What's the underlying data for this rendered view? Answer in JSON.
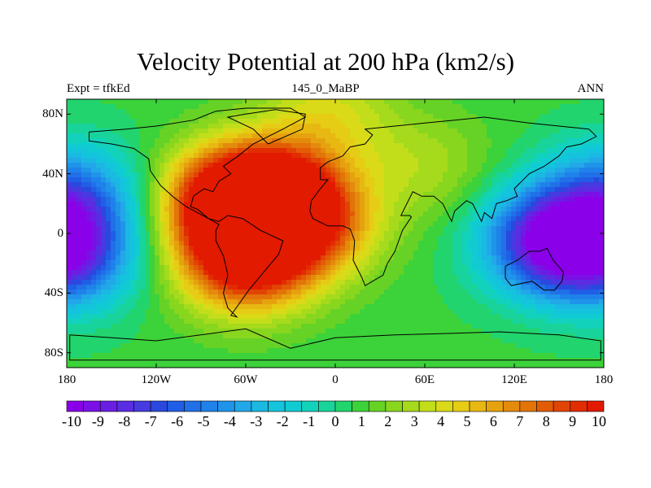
{
  "title": "Velocity Potential at 200 hPa (km2/s)",
  "subtitle_left": "Expt = tfkEd",
  "subtitle_center": "145_0_MaBP",
  "subtitle_right": "ANN",
  "map": {
    "projection": "cylindrical equidistant",
    "lon_range": [
      -180,
      180
    ],
    "lat_range": [
      -90,
      90
    ],
    "x_ticks": [
      {
        "lon": -180,
        "label": "180"
      },
      {
        "lon": -120,
        "label": "120W"
      },
      {
        "lon": -60,
        "label": "60W"
      },
      {
        "lon": 0,
        "label": "0"
      },
      {
        "lon": 60,
        "label": "60E"
      },
      {
        "lon": 120,
        "label": "120E"
      },
      {
        "lon": 180,
        "label": "180"
      }
    ],
    "y_ticks": [
      {
        "lat": 80,
        "label": "80N"
      },
      {
        "lat": 40,
        "label": "40N"
      },
      {
        "lat": 0,
        "label": "0"
      },
      {
        "lat": -40,
        "label": "40S"
      },
      {
        "lat": -80,
        "label": "80S"
      }
    ],
    "field_features": [
      {
        "lon": -70,
        "lat": 22,
        "value": 9.5
      },
      {
        "lon": -40,
        "lat": 24,
        "value": 9.5
      },
      {
        "lon": -60,
        "lat": -18,
        "value": 9.5
      },
      {
        "lon": -15,
        "lat": 5,
        "value": 5
      },
      {
        "lon": 145,
        "lat": -5,
        "value": -9.5
      },
      {
        "lon": -178,
        "lat": -15,
        "value": -6.5
      },
      {
        "lon": -176,
        "lat": 25,
        "value": -5.5
      },
      {
        "lon": 60,
        "lat": 45,
        "value": 2
      },
      {
        "lon": -5,
        "lat": 80,
        "value": 3
      }
    ]
  },
  "colorbar": {
    "levels": [
      "-10",
      "-9",
      "-8",
      "-7",
      "-6",
      "-5",
      "-4",
      "-3",
      "-2",
      "-1",
      "0",
      "1",
      "2",
      "3",
      "4",
      "5",
      "6",
      "7",
      "8",
      "9",
      "10"
    ],
    "colors": [
      "#8a00e8",
      "#7a10e6",
      "#6a1ee4",
      "#5a2ce2",
      "#463ae0",
      "#2a48de",
      "#1f5ee6",
      "#2170e8",
      "#1f82ea",
      "#1f94ea",
      "#22a8e8",
      "#1ab8e2",
      "#14c4dc",
      "#10ccd2",
      "#12d2bc",
      "#18d49a",
      "#22d46e",
      "#3cd23a",
      "#66d226",
      "#88d61e",
      "#a6da1c",
      "#c2de1a",
      "#dada18",
      "#e6cc14",
      "#e8b812",
      "#e6a20e",
      "#e48a0c",
      "#e27408",
      "#e25c06",
      "#e24404",
      "#e22c02",
      "#e21a00"
    ]
  }
}
